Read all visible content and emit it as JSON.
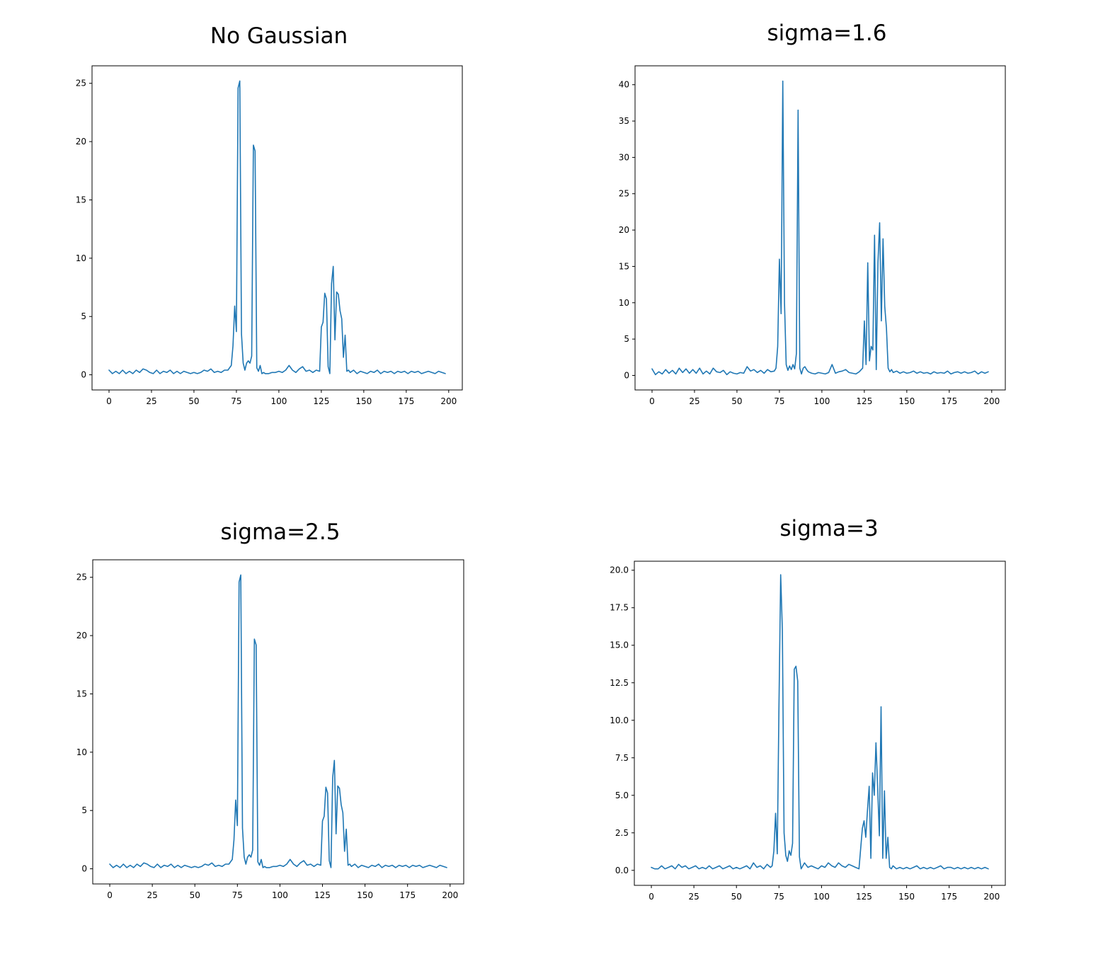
{
  "figure": {
    "line_color": "#1f77b4",
    "background": "#ffffff"
  },
  "chart_data": [
    {
      "type": "line",
      "title": "No Gaussian",
      "xlabel": "",
      "ylabel": "",
      "grid": false,
      "legend": "none",
      "xlim": [
        -10,
        208
      ],
      "ylim": [
        -1.3,
        26.5
      ],
      "xticks": [
        0,
        25,
        50,
        75,
        100,
        125,
        150,
        175,
        200
      ],
      "yticks": [
        0,
        5,
        10,
        15,
        20,
        25
      ],
      "ytick_labels": [
        "0",
        "5",
        "10",
        "15",
        "20",
        "25"
      ],
      "series": [
        {
          "x": [
            0,
            2,
            4,
            6,
            8,
            10,
            12,
            14,
            16,
            18,
            20,
            22,
            24,
            26,
            28,
            30,
            32,
            34,
            36,
            38,
            40,
            42,
            44,
            46,
            48,
            50,
            52,
            54,
            56,
            58,
            60,
            62,
            64,
            66,
            68,
            70,
            72,
            73,
            74,
            75,
            76,
            77,
            78,
            79,
            80,
            81,
            82,
            83,
            84,
            85,
            86,
            87,
            88,
            89,
            90,
            91,
            92,
            94,
            96,
            98,
            100,
            102,
            104,
            106,
            108,
            110,
            112,
            114,
            116,
            118,
            120,
            122,
            124,
            125,
            126,
            127,
            128,
            129,
            130,
            131,
            132,
            133,
            134,
            135,
            136,
            137,
            138,
            139,
            140,
            141,
            142,
            144,
            146,
            148,
            150,
            152,
            154,
            156,
            158,
            160,
            162,
            164,
            166,
            168,
            170,
            172,
            174,
            176,
            178,
            180,
            182,
            184,
            186,
            188,
            190,
            192,
            194,
            196,
            198
          ],
          "values": [
            0.4,
            0.1,
            0.3,
            0.1,
            0.4,
            0.1,
            0.3,
            0.1,
            0.4,
            0.2,
            0.5,
            0.4,
            0.2,
            0.1,
            0.4,
            0.1,
            0.3,
            0.2,
            0.4,
            0.1,
            0.3,
            0.1,
            0.3,
            0.2,
            0.1,
            0.2,
            0.1,
            0.2,
            0.4,
            0.3,
            0.5,
            0.2,
            0.3,
            0.2,
            0.4,
            0.4,
            0.8,
            2.5,
            5.9,
            3.7,
            24.6,
            25.2,
            3.5,
            1.0,
            0.4,
            1.0,
            1.2,
            1.0,
            1.6,
            19.7,
            19.2,
            0.6,
            0.3,
            0.8,
            0.1,
            0.2,
            0.1,
            0.1,
            0.2,
            0.2,
            0.3,
            0.2,
            0.4,
            0.8,
            0.4,
            0.2,
            0.5,
            0.7,
            0.3,
            0.4,
            0.2,
            0.4,
            0.3,
            4.1,
            4.5,
            7.0,
            6.5,
            0.7,
            0.1,
            7.8,
            9.3,
            3.0,
            7.1,
            6.9,
            5.5,
            4.8,
            1.5,
            3.4,
            0.3,
            0.4,
            0.2,
            0.4,
            0.1,
            0.3,
            0.2,
            0.1,
            0.3,
            0.2,
            0.4,
            0.1,
            0.3,
            0.2,
            0.3,
            0.1,
            0.3,
            0.2,
            0.3,
            0.1,
            0.3,
            0.2,
            0.3,
            0.1,
            0.2,
            0.3,
            0.2,
            0.1,
            0.3,
            0.2,
            0.1
          ]
        }
      ]
    },
    {
      "type": "line",
      "title": "sigma=1.6",
      "xlabel": "",
      "ylabel": "",
      "grid": false,
      "legend": "none",
      "xlim": [
        -10,
        208
      ],
      "ylim": [
        -2.0,
        42.6
      ],
      "xticks": [
        0,
        25,
        50,
        75,
        100,
        125,
        150,
        175,
        200
      ],
      "yticks": [
        0,
        5,
        10,
        15,
        20,
        25,
        30,
        35,
        40
      ],
      "ytick_labels": [
        "0",
        "5",
        "10",
        "15",
        "20",
        "25",
        "30",
        "35",
        "40"
      ],
      "series": [
        {
          "x": [
            0,
            2,
            4,
            6,
            8,
            10,
            12,
            14,
            16,
            18,
            20,
            22,
            24,
            26,
            28,
            30,
            32,
            34,
            36,
            38,
            40,
            42,
            44,
            46,
            48,
            50,
            52,
            54,
            56,
            58,
            60,
            62,
            64,
            66,
            68,
            70,
            72,
            73,
            74,
            75,
            76,
            77,
            78,
            79,
            80,
            81,
            82,
            83,
            84,
            85,
            86,
            87,
            88,
            89,
            90,
            91,
            92,
            94,
            96,
            98,
            100,
            102,
            104,
            106,
            108,
            110,
            112,
            114,
            116,
            118,
            120,
            122,
            124,
            125,
            126,
            127,
            128,
            129,
            130,
            131,
            132,
            133,
            134,
            135,
            136,
            137,
            138,
            139,
            140,
            141,
            142,
            144,
            146,
            148,
            150,
            152,
            154,
            156,
            158,
            160,
            162,
            164,
            166,
            168,
            170,
            172,
            174,
            176,
            178,
            180,
            182,
            184,
            186,
            188,
            190,
            192,
            194,
            196,
            198
          ],
          "values": [
            0.9,
            0.1,
            0.5,
            0.2,
            0.8,
            0.3,
            0.7,
            0.2,
            1.0,
            0.4,
            0.9,
            0.3,
            0.8,
            0.3,
            1.0,
            0.2,
            0.6,
            0.2,
            1.0,
            0.5,
            0.4,
            0.7,
            0.1,
            0.5,
            0.3,
            0.2,
            0.4,
            0.3,
            1.2,
            0.6,
            0.8,
            0.4,
            0.7,
            0.3,
            0.8,
            0.5,
            0.6,
            1.0,
            4.0,
            16.0,
            8.5,
            40.5,
            10.0,
            1.5,
            0.7,
            1.3,
            0.8,
            1.5,
            0.9,
            3.0,
            36.5,
            1.0,
            0.2,
            1.0,
            1.2,
            0.8,
            0.5,
            0.3,
            0.2,
            0.4,
            0.3,
            0.2,
            0.4,
            1.5,
            0.3,
            0.5,
            0.6,
            0.8,
            0.4,
            0.3,
            0.2,
            0.5,
            1.0,
            7.5,
            1.5,
            15.5,
            2.0,
            4.0,
            3.5,
            19.3,
            0.8,
            15.5,
            21.0,
            7.5,
            18.8,
            9.5,
            6.5,
            1.0,
            0.5,
            0.8,
            0.4,
            0.6,
            0.3,
            0.5,
            0.3,
            0.4,
            0.6,
            0.3,
            0.5,
            0.3,
            0.4,
            0.2,
            0.5,
            0.3,
            0.4,
            0.3,
            0.6,
            0.2,
            0.4,
            0.5,
            0.3,
            0.5,
            0.3,
            0.4,
            0.6,
            0.2,
            0.5,
            0.3,
            0.5
          ]
        }
      ]
    },
    {
      "type": "line",
      "title": "sigma=2.5",
      "xlabel": "",
      "ylabel": "",
      "grid": false,
      "legend": "none",
      "xlim": [
        -10,
        208
      ],
      "ylim": [
        -1.3,
        26.5
      ],
      "xticks": [
        0,
        25,
        50,
        75,
        100,
        125,
        150,
        175,
        200
      ],
      "yticks": [
        0,
        5,
        10,
        15,
        20,
        25
      ],
      "ytick_labels": [
        "0",
        "5",
        "10",
        "15",
        "20",
        "25"
      ],
      "series": [
        {
          "x": [
            0,
            2,
            4,
            6,
            8,
            10,
            12,
            14,
            16,
            18,
            20,
            22,
            24,
            26,
            28,
            30,
            32,
            34,
            36,
            38,
            40,
            42,
            44,
            46,
            48,
            50,
            52,
            54,
            56,
            58,
            60,
            62,
            64,
            66,
            68,
            70,
            72,
            73,
            74,
            75,
            76,
            77,
            78,
            79,
            80,
            81,
            82,
            83,
            84,
            85,
            86,
            87,
            88,
            89,
            90,
            91,
            92,
            94,
            96,
            98,
            100,
            102,
            104,
            106,
            108,
            110,
            112,
            114,
            116,
            118,
            120,
            122,
            124,
            125,
            126,
            127,
            128,
            129,
            130,
            131,
            132,
            133,
            134,
            135,
            136,
            137,
            138,
            139,
            140,
            141,
            142,
            144,
            146,
            148,
            150,
            152,
            154,
            156,
            158,
            160,
            162,
            164,
            166,
            168,
            170,
            172,
            174,
            176,
            178,
            180,
            182,
            184,
            186,
            188,
            190,
            192,
            194,
            196,
            198
          ],
          "values": [
            0.4,
            0.1,
            0.3,
            0.1,
            0.4,
            0.1,
            0.3,
            0.1,
            0.4,
            0.2,
            0.5,
            0.4,
            0.2,
            0.1,
            0.4,
            0.1,
            0.3,
            0.2,
            0.4,
            0.1,
            0.3,
            0.1,
            0.3,
            0.2,
            0.1,
            0.2,
            0.1,
            0.2,
            0.4,
            0.3,
            0.5,
            0.2,
            0.3,
            0.2,
            0.4,
            0.4,
            0.8,
            2.5,
            5.9,
            3.7,
            24.6,
            25.2,
            3.5,
            1.0,
            0.4,
            1.0,
            1.2,
            1.0,
            1.6,
            19.7,
            19.2,
            0.6,
            0.3,
            0.8,
            0.1,
            0.2,
            0.1,
            0.1,
            0.2,
            0.2,
            0.3,
            0.2,
            0.4,
            0.8,
            0.4,
            0.2,
            0.5,
            0.7,
            0.3,
            0.4,
            0.2,
            0.4,
            0.3,
            4.1,
            4.5,
            7.0,
            6.5,
            0.7,
            0.1,
            7.8,
            9.3,
            3.0,
            7.1,
            6.9,
            5.5,
            4.8,
            1.5,
            3.4,
            0.3,
            0.4,
            0.2,
            0.4,
            0.1,
            0.3,
            0.2,
            0.1,
            0.3,
            0.2,
            0.4,
            0.1,
            0.3,
            0.2,
            0.3,
            0.1,
            0.3,
            0.2,
            0.3,
            0.1,
            0.3,
            0.2,
            0.3,
            0.1,
            0.2,
            0.3,
            0.2,
            0.1,
            0.3,
            0.2,
            0.1
          ]
        }
      ]
    },
    {
      "type": "line",
      "title": "sigma=3",
      "xlabel": "",
      "ylabel": "",
      "grid": false,
      "legend": "none",
      "xlim": [
        -10,
        208
      ],
      "ylim": [
        -1.0,
        20.6
      ],
      "xticks": [
        0,
        25,
        50,
        75,
        100,
        125,
        150,
        175,
        200
      ],
      "yticks": [
        0,
        2.5,
        5,
        7.5,
        10,
        12.5,
        15,
        17.5,
        20
      ],
      "ytick_labels": [
        "0.0",
        "2.5",
        "5.0",
        "7.5",
        "10.0",
        "12.5",
        "15.0",
        "17.5",
        "20.0"
      ],
      "series": [
        {
          "x": [
            0,
            2,
            4,
            6,
            8,
            10,
            12,
            14,
            16,
            18,
            20,
            22,
            24,
            26,
            28,
            30,
            32,
            34,
            36,
            38,
            40,
            42,
            44,
            46,
            48,
            50,
            52,
            54,
            56,
            58,
            60,
            62,
            64,
            66,
            68,
            70,
            71,
            72,
            73,
            74,
            75,
            76,
            77,
            78,
            79,
            80,
            81,
            82,
            83,
            84,
            85,
            86,
            87,
            88,
            89,
            90,
            92,
            94,
            96,
            98,
            100,
            102,
            104,
            106,
            108,
            110,
            112,
            114,
            116,
            118,
            120,
            122,
            124,
            125,
            126,
            127,
            128,
            129,
            130,
            131,
            132,
            133,
            134,
            135,
            136,
            137,
            138,
            139,
            140,
            141,
            142,
            144,
            146,
            148,
            150,
            152,
            154,
            156,
            158,
            160,
            162,
            164,
            166,
            168,
            170,
            172,
            174,
            176,
            178,
            180,
            182,
            184,
            186,
            188,
            190,
            192,
            194,
            196,
            198
          ],
          "values": [
            0.2,
            0.1,
            0.1,
            0.3,
            0.1,
            0.2,
            0.3,
            0.1,
            0.4,
            0.2,
            0.3,
            0.1,
            0.2,
            0.3,
            0.1,
            0.2,
            0.1,
            0.3,
            0.1,
            0.2,
            0.3,
            0.1,
            0.2,
            0.3,
            0.1,
            0.2,
            0.1,
            0.2,
            0.3,
            0.1,
            0.5,
            0.2,
            0.3,
            0.1,
            0.4,
            0.2,
            0.3,
            1.3,
            3.8,
            1.1,
            11.0,
            19.7,
            16.0,
            2.5,
            1.0,
            0.6,
            1.3,
            1.0,
            1.8,
            13.4,
            13.6,
            12.6,
            0.9,
            0.1,
            0.3,
            0.5,
            0.2,
            0.3,
            0.2,
            0.1,
            0.3,
            0.2,
            0.5,
            0.3,
            0.2,
            0.5,
            0.3,
            0.2,
            0.4,
            0.3,
            0.2,
            0.1,
            2.8,
            3.3,
            2.2,
            4.0,
            5.6,
            0.8,
            6.5,
            5.0,
            8.5,
            5.5,
            2.3,
            10.9,
            0.8,
            5.3,
            0.8,
            2.2,
            0.2,
            0.1,
            0.3,
            0.1,
            0.2,
            0.1,
            0.2,
            0.1,
            0.2,
            0.3,
            0.1,
            0.2,
            0.1,
            0.2,
            0.1,
            0.2,
            0.3,
            0.1,
            0.2,
            0.2,
            0.1,
            0.2,
            0.1,
            0.2,
            0.1,
            0.2,
            0.1,
            0.2,
            0.1,
            0.2,
            0.1
          ]
        }
      ]
    }
  ]
}
